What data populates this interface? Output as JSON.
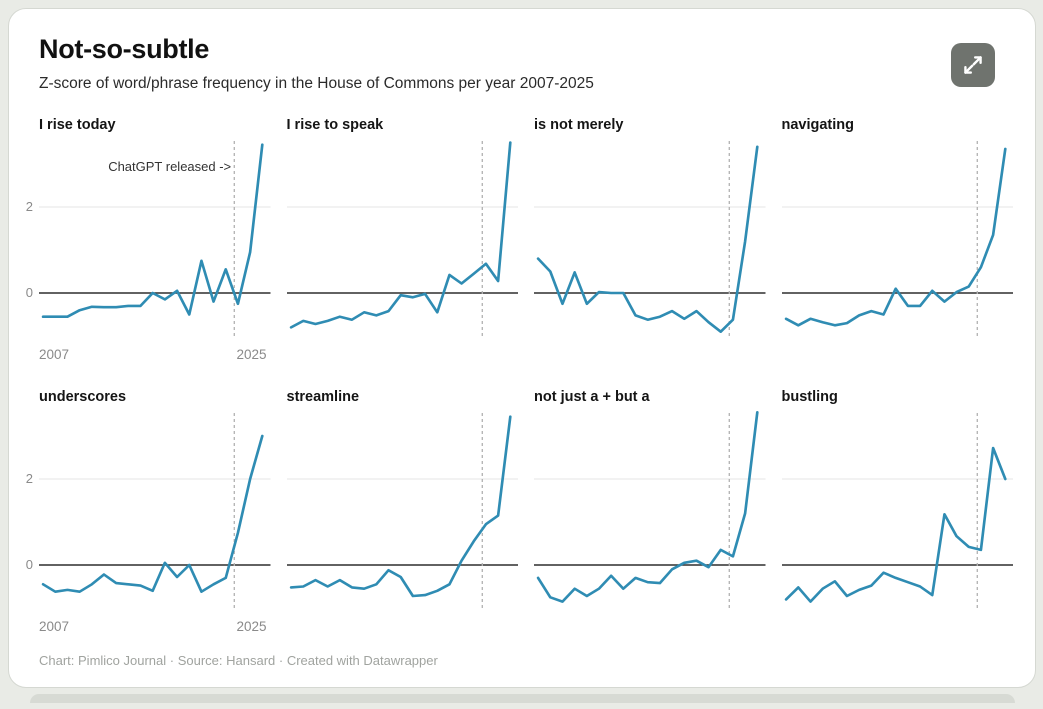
{
  "header": {
    "title": "Not-so-subtle",
    "subtitle": "Z-score of word/phrase frequency in the House of Commons per year 2007-2025"
  },
  "controls": {
    "expand_button_icon": "expand-arrows-icon"
  },
  "axis": {
    "y_tick_labels": [
      "2",
      "0"
    ],
    "x_tick_labels": [
      "2007",
      "2025"
    ]
  },
  "footer": {
    "text": "Chart: Pimlico Journal · Source: Hansard · Created with Datawrapper"
  },
  "colors": {
    "line": "#2f8cb3",
    "zero_line": "#2f2f2f",
    "gridline": "#e4e4e4",
    "dashed_line": "#b3b3b3",
    "axis_label": "#8a8a8a",
    "footer_text": "#a0a39f",
    "expand_button_bg": "#6f736e",
    "card_bg": "#ffffff",
    "page_bg": "#e9ebe6"
  },
  "chart_data": {
    "type": "line",
    "layout": "small-multiples-4x2",
    "title": "Not-so-subtle",
    "subtitle": "Z-score of word/phrase frequency in the House of Commons per year 2007-2025",
    "x": [
      2007,
      2008,
      2009,
      2010,
      2011,
      2012,
      2013,
      2014,
      2015,
      2016,
      2017,
      2018,
      2019,
      2020,
      2021,
      2022,
      2023,
      2024,
      2025
    ],
    "x_range": [
      2007,
      2025
    ],
    "ylim": [
      -1,
      3.6
    ],
    "y_gridlines": [
      0,
      2
    ],
    "grid": true,
    "legend": "none",
    "event_line": {
      "year": 2022.7,
      "label": "ChatGPT released ->",
      "style": "dashed"
    },
    "series": [
      {
        "name": "I rise today",
        "annotated": true,
        "values": [
          -0.55,
          -0.55,
          -0.55,
          -0.4,
          -0.32,
          -0.33,
          -0.33,
          -0.3,
          -0.3,
          0.0,
          -0.15,
          0.05,
          -0.5,
          0.75,
          -0.2,
          0.55,
          -0.25,
          0.95,
          3.45
        ]
      },
      {
        "name": "I rise to speak",
        "annotated": false,
        "values": [
          -0.8,
          -0.65,
          -0.72,
          -0.65,
          -0.55,
          -0.62,
          -0.45,
          -0.52,
          -0.42,
          -0.05,
          -0.1,
          -0.02,
          -0.45,
          0.42,
          0.22,
          0.45,
          0.68,
          0.28,
          3.5
        ]
      },
      {
        "name": "is not merely",
        "annotated": false,
        "values": [
          0.8,
          0.5,
          -0.25,
          0.48,
          -0.25,
          0.02,
          0.0,
          0.0,
          -0.52,
          -0.62,
          -0.55,
          -0.42,
          -0.6,
          -0.42,
          -0.68,
          -0.9,
          -0.62,
          1.2,
          3.4
        ]
      },
      {
        "name": "navigating",
        "annotated": false,
        "values": [
          -0.6,
          -0.75,
          -0.6,
          -0.68,
          -0.75,
          -0.7,
          -0.52,
          -0.42,
          -0.5,
          0.1,
          -0.3,
          -0.3,
          0.05,
          -0.2,
          0.02,
          0.15,
          0.6,
          1.35,
          3.35
        ]
      },
      {
        "name": "underscores",
        "annotated": false,
        "values": [
          -0.45,
          -0.62,
          -0.58,
          -0.62,
          -0.45,
          -0.22,
          -0.42,
          -0.45,
          -0.48,
          -0.6,
          0.05,
          -0.28,
          0.0,
          -0.62,
          -0.45,
          -0.3,
          0.75,
          2.0,
          3.0
        ]
      },
      {
        "name": "streamline",
        "annotated": false,
        "values": [
          -0.52,
          -0.5,
          -0.35,
          -0.5,
          -0.35,
          -0.52,
          -0.55,
          -0.45,
          -0.12,
          -0.28,
          -0.72,
          -0.7,
          -0.6,
          -0.45,
          0.1,
          0.55,
          0.95,
          1.15,
          3.45
        ]
      },
      {
        "name": "not just a + but a",
        "annotated": false,
        "values": [
          -0.3,
          -0.75,
          -0.85,
          -0.55,
          -0.72,
          -0.55,
          -0.25,
          -0.55,
          -0.3,
          -0.4,
          -0.42,
          -0.1,
          0.05,
          0.1,
          -0.05,
          0.35,
          0.2,
          1.2,
          3.55
        ]
      },
      {
        "name": "bustling",
        "annotated": false,
        "values": [
          -0.8,
          -0.52,
          -0.85,
          -0.55,
          -0.38,
          -0.72,
          -0.58,
          -0.48,
          -0.18,
          -0.3,
          -0.4,
          -0.5,
          -0.7,
          1.18,
          0.67,
          0.42,
          0.35,
          2.72,
          2.0
        ]
      }
    ]
  }
}
